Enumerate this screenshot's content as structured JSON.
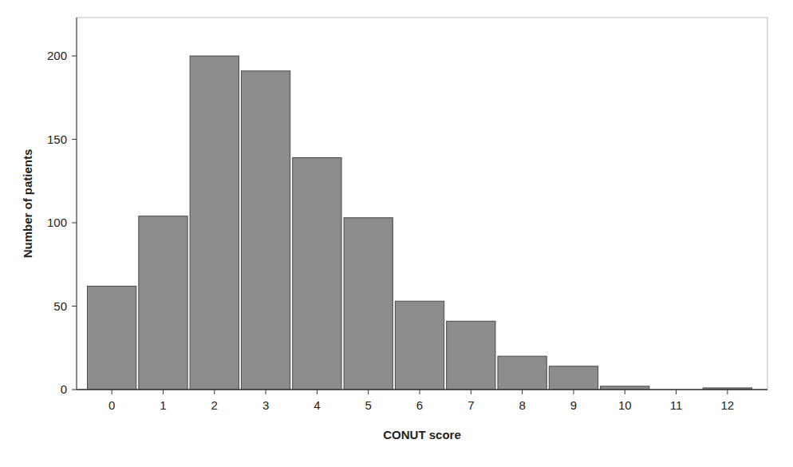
{
  "chart_data": {
    "type": "bar",
    "x_label": "CONUT score",
    "y_label": "Number of patients",
    "categories": [
      "0",
      "1",
      "2",
      "3",
      "4",
      "5",
      "6",
      "7",
      "8",
      "9",
      "10",
      "11",
      "12"
    ],
    "values": [
      62,
      104,
      200,
      191,
      139,
      103,
      53,
      41,
      20,
      14,
      2,
      0,
      1
    ],
    "color": "#8c8c8c",
    "ylim": [
      0,
      223
    ],
    "yticks": [
      0,
      50,
      100,
      150,
      200
    ],
    "grid": false
  }
}
